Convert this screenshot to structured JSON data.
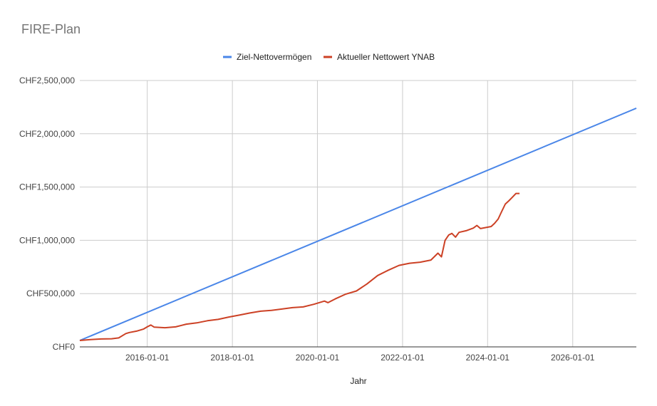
{
  "chart_data": {
    "type": "line",
    "title": "FIRE-Plan",
    "xlabel": "Jahr",
    "ylabel": "",
    "x_type": "date",
    "xlim": [
      "2014-06-01",
      "2027-07-01"
    ],
    "ylim": [
      0,
      2500000
    ],
    "x_ticks": [
      "2016-01-01",
      "2018-01-01",
      "2020-01-01",
      "2022-01-01",
      "2024-01-01",
      "2026-01-01"
    ],
    "y_ticks": [
      0,
      500000,
      1000000,
      1500000,
      2000000,
      2500000
    ],
    "y_tick_labels": [
      "CHF0",
      "CHF500,000",
      "CHF1,000,000",
      "CHF1,500,000",
      "CHF2,000,000",
      "CHF2,500,000"
    ],
    "grid": true,
    "legend_position": "top",
    "series": [
      {
        "name": "Ziel-Nettovermögen",
        "color": "#4a86e8",
        "points": [
          [
            "2014-06-01",
            60000
          ],
          [
            "2027-07-01",
            2240000
          ]
        ]
      },
      {
        "name": "Aktueller Nettowert YNAB",
        "color": "#cc4125",
        "points": [
          [
            "2014-06-01",
            60000
          ],
          [
            "2014-09-01",
            68000
          ],
          [
            "2014-12-01",
            74000
          ],
          [
            "2015-03-01",
            76000
          ],
          [
            "2015-05-01",
            84000
          ],
          [
            "2015-07-01",
            125000
          ],
          [
            "2015-08-01",
            135000
          ],
          [
            "2015-10-01",
            148000
          ],
          [
            "2015-12-01",
            168000
          ],
          [
            "2016-01-01",
            188000
          ],
          [
            "2016-02-01",
            205000
          ],
          [
            "2016-03-01",
            185000
          ],
          [
            "2016-06-01",
            180000
          ],
          [
            "2016-09-01",
            188000
          ],
          [
            "2016-12-01",
            213000
          ],
          [
            "2017-03-01",
            225000
          ],
          [
            "2017-06-01",
            245000
          ],
          [
            "2017-09-01",
            258000
          ],
          [
            "2017-12-01",
            280000
          ],
          [
            "2018-03-01",
            298000
          ],
          [
            "2018-06-01",
            318000
          ],
          [
            "2018-09-01",
            335000
          ],
          [
            "2018-12-01",
            342000
          ],
          [
            "2019-03-01",
            355000
          ],
          [
            "2019-06-01",
            368000
          ],
          [
            "2019-09-01",
            375000
          ],
          [
            "2019-12-01",
            400000
          ],
          [
            "2020-03-01",
            430000
          ],
          [
            "2020-04-01",
            415000
          ],
          [
            "2020-06-01",
            450000
          ],
          [
            "2020-09-01",
            495000
          ],
          [
            "2020-12-01",
            525000
          ],
          [
            "2021-03-01",
            590000
          ],
          [
            "2021-06-01",
            670000
          ],
          [
            "2021-09-01",
            720000
          ],
          [
            "2021-12-01",
            765000
          ],
          [
            "2022-03-01",
            785000
          ],
          [
            "2022-06-01",
            795000
          ],
          [
            "2022-09-01",
            815000
          ],
          [
            "2022-11-01",
            880000
          ],
          [
            "2022-12-01",
            845000
          ],
          [
            "2023-01-01",
            1000000
          ],
          [
            "2023-02-01",
            1050000
          ],
          [
            "2023-03-01",
            1065000
          ],
          [
            "2023-04-01",
            1030000
          ],
          [
            "2023-05-01",
            1075000
          ],
          [
            "2023-07-01",
            1090000
          ],
          [
            "2023-09-01",
            1115000
          ],
          [
            "2023-10-01",
            1140000
          ],
          [
            "2023-11-01",
            1110000
          ],
          [
            "2024-02-01",
            1130000
          ],
          [
            "2024-03-01",
            1160000
          ],
          [
            "2024-04-01",
            1200000
          ],
          [
            "2024-05-01",
            1270000
          ],
          [
            "2024-06-01",
            1340000
          ],
          [
            "2024-07-01",
            1370000
          ],
          [
            "2024-08-01",
            1405000
          ],
          [
            "2024-09-01",
            1440000
          ],
          [
            "2024-10-01",
            1440000
          ]
        ]
      }
    ]
  }
}
